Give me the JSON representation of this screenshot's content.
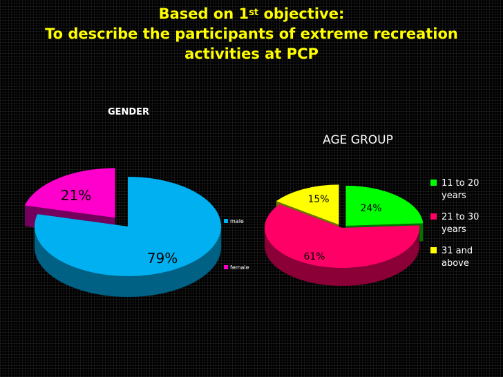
{
  "slide": {
    "title_line1_prefix": "Based on 1",
    "title_line1_sup": "st",
    "title_line1_suffix": " objective:",
    "title_line2": "To describe the participants of extreme recreation",
    "title_line3": "activities at PCP"
  },
  "chart_data": [
    {
      "type": "pie",
      "title": "GENDER",
      "categories": [
        "male",
        "female"
      ],
      "values": [
        79,
        21
      ],
      "labels": [
        "79%",
        "21%"
      ],
      "colors": [
        "#00b0f0",
        "#ff00cc"
      ],
      "legend_position": "right"
    },
    {
      "type": "pie",
      "title": "AGE GROUP",
      "categories": [
        "11 to 20 years",
        "21 to 30 years",
        "31 and above"
      ],
      "values": [
        24,
        61,
        15
      ],
      "labels": [
        "24%",
        "61%",
        "15%"
      ],
      "colors": [
        "#00ff00",
        "#ff0066",
        "#ffff00"
      ],
      "legend_position": "right"
    }
  ]
}
